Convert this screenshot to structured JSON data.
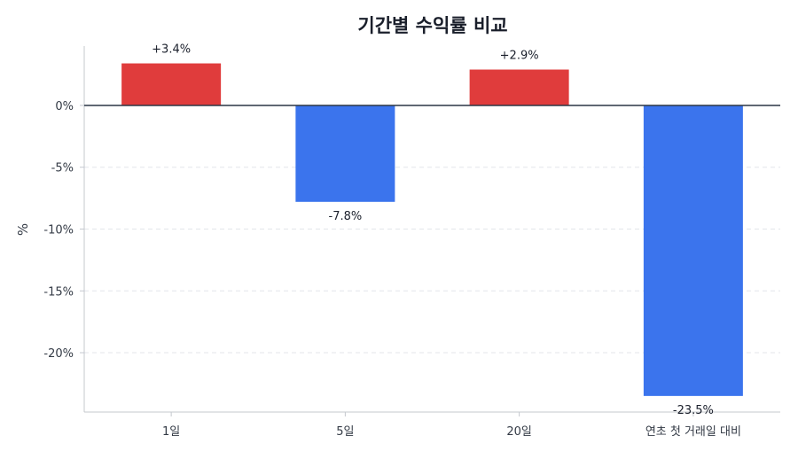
{
  "chart_data": {
    "type": "bar",
    "title": "기간별 수익률 비교",
    "xlabel": "",
    "ylabel": "%",
    "categories": [
      "1일",
      "5일",
      "20일",
      "연초 첫 거래일 대비"
    ],
    "values": [
      3.4,
      -7.8,
      2.9,
      -23.5
    ],
    "data_labels": [
      "+3.4%",
      "-7.8%",
      "+2.9%",
      "-23.5%"
    ],
    "ylim": [
      -24.8,
      4.8
    ],
    "yticks": [
      0,
      -5,
      -10,
      -15,
      -20
    ],
    "ytick_labels": [
      "0%",
      "-5%",
      "-10%",
      "-15%",
      "-20%"
    ],
    "grid": true,
    "legend": "none",
    "colors": {
      "positive": "#e03c3c",
      "negative": "#3b74ed",
      "zero_line": "#2b3645",
      "grid": "#e3e6ea"
    }
  }
}
